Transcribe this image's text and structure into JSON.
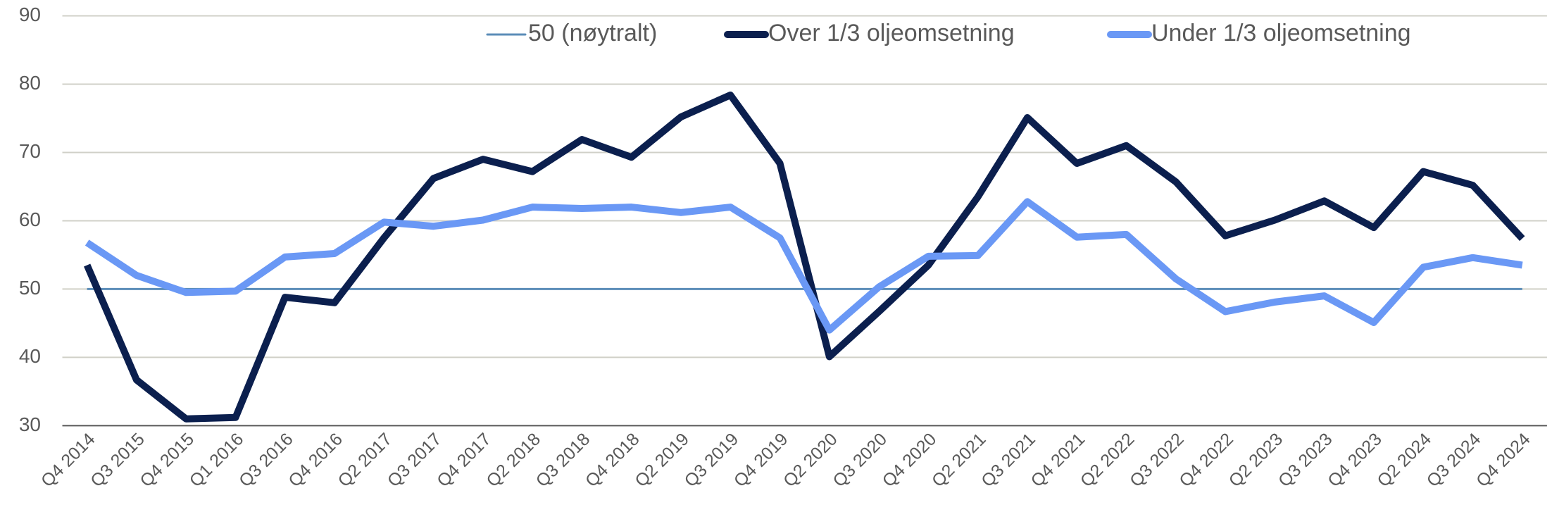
{
  "chart_data": {
    "type": "line",
    "categories": [
      "Q4 2014",
      "Q3 2015",
      "Q4 2015",
      "Q1 2016",
      "Q3 2016",
      "Q4 2016",
      "Q2 2017",
      "Q3 2017",
      "Q4 2017",
      "Q2 2018",
      "Q3 2018",
      "Q4 2018",
      "Q2 2019",
      "Q3 2019",
      "Q4 2019",
      "Q2 2020",
      "Q3 2020",
      "Q4 2020",
      "Q2 2021",
      "Q3 2021",
      "Q4 2021",
      "Q2 2022",
      "Q3 2022",
      "Q4 2022",
      "Q2 2023",
      "Q3 2023",
      "Q4 2023",
      "Q2 2024",
      "Q3 2024",
      "Q4 2024"
    ],
    "series": [
      {
        "name": "50 (nøytralt)",
        "color": "#5b8db8",
        "values": [
          50,
          50,
          50,
          50,
          50,
          50,
          50,
          50,
          50,
          50,
          50,
          50,
          50,
          50,
          50,
          50,
          50,
          50,
          50,
          50,
          50,
          50,
          50,
          50,
          50,
          50,
          50,
          50,
          50,
          50
        ]
      },
      {
        "name": "Over 1/3 oljeomsetning",
        "color": "#0b1f4e",
        "values": [
          53.5,
          36.7,
          31,
          31.2,
          48.8,
          48,
          57.5,
          66.2,
          69,
          67.2,
          71.9,
          69.3,
          75.2,
          78.4,
          68.4,
          40.1,
          46.7,
          53.5,
          63.5,
          75.1,
          68.4,
          71,
          65.7,
          57.8,
          60.1,
          62.9,
          59,
          67.2,
          65.2,
          57.4
        ]
      },
      {
        "name": "Under 1/3 oljeomsetning",
        "color": "#6a98f5",
        "values": [
          56.8,
          52,
          49.5,
          49.7,
          54.7,
          55.2,
          59.8,
          59.2,
          60.1,
          62,
          61.8,
          62,
          61.2,
          62,
          57.5,
          44,
          50.3,
          54.8,
          54.9,
          62.8,
          57.6,
          58,
          51.5,
          46.7,
          48.1,
          49,
          45.1,
          53.2,
          54.6,
          53.5
        ]
      }
    ],
    "ylim": [
      30,
      90
    ],
    "yticks": [
      30,
      40,
      50,
      60,
      70,
      80,
      90
    ],
    "grid": true,
    "legend": "top"
  }
}
